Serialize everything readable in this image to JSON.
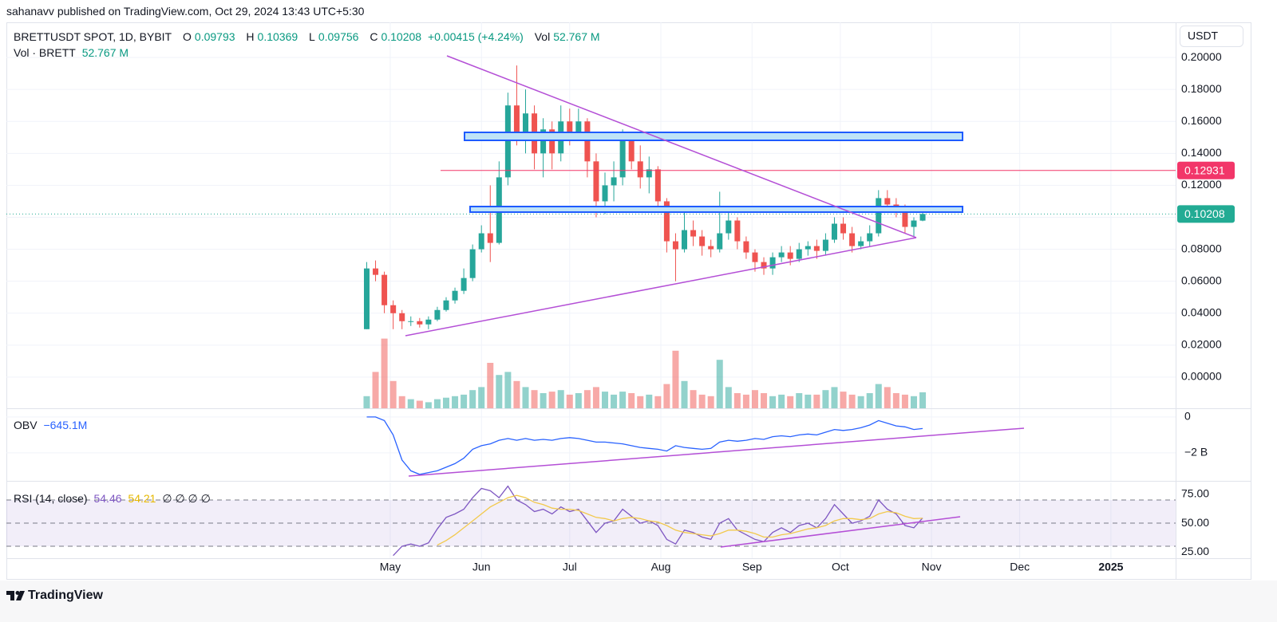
{
  "header": {
    "publisher": "sahanavv published on TradingView.com, Oct 29, 2024 13:43 UTC+5:30"
  },
  "footer": {
    "brand": "TradingView"
  },
  "chart_data": [
    {
      "type": "candlestick",
      "symbol": "BRETTUSDT SPOT, 1D, BYBIT",
      "ohlc_keys": [
        "O",
        "H",
        "L",
        "C"
      ],
      "change": "+0.00415 (+4.24%)",
      "volume_key": "Vol",
      "volume_text": "52.767 M",
      "volume_legend": "Vol · BRETT",
      "currency": "USDT",
      "x": [
        -8,
        -5,
        -2,
        1,
        4,
        7,
        10,
        13,
        16,
        19,
        22,
        25,
        28,
        31,
        34,
        37,
        40,
        43,
        46,
        49,
        52,
        55,
        58,
        61,
        64,
        67,
        70,
        73,
        76,
        79,
        82,
        85,
        88,
        91,
        94,
        97,
        100,
        103,
        106,
        109,
        112,
        115,
        118,
        121,
        124,
        127,
        130,
        133,
        136,
        139,
        142,
        145,
        148,
        151,
        154,
        157,
        160,
        163,
        166,
        169,
        172,
        175,
        178,
        181
      ],
      "xlim": [
        -130.5,
        267
      ],
      "xticks": [
        {
          "value": 0,
          "label": "May"
        },
        {
          "value": 31,
          "label": "Jun"
        },
        {
          "value": 61,
          "label": "Jul"
        },
        {
          "value": 92,
          "label": "Aug"
        },
        {
          "value": 123,
          "label": "Sep"
        },
        {
          "value": 153,
          "label": "Oct"
        },
        {
          "value": 184,
          "label": "Nov"
        },
        {
          "value": 214,
          "label": "Dec"
        },
        {
          "value": 245,
          "label": "2025"
        }
      ],
      "open": [
        0.03,
        0.068,
        0.064,
        0.045,
        0.04,
        0.035,
        0.035,
        0.033,
        0.036,
        0.042,
        0.048,
        0.054,
        0.062,
        0.08,
        0.09,
        0.084,
        0.125,
        0.17,
        0.15,
        0.165,
        0.14,
        0.155,
        0.14,
        0.16,
        0.15,
        0.16,
        0.135,
        0.11,
        0.12,
        0.125,
        0.15,
        0.135,
        0.125,
        0.13,
        0.11,
        0.085,
        0.08,
        0.092,
        0.088,
        0.082,
        0.08,
        0.09,
        0.098,
        0.085,
        0.078,
        0.072,
        0.068,
        0.075,
        0.078,
        0.074,
        0.08,
        0.082,
        0.079,
        0.086,
        0.096,
        0.09,
        0.082,
        0.085,
        0.09,
        0.112,
        0.108,
        0.106,
        0.094,
        0.09793
      ],
      "high": [
        0.072,
        0.073,
        0.066,
        0.048,
        0.042,
        0.038,
        0.037,
        0.038,
        0.044,
        0.05,
        0.056,
        0.068,
        0.083,
        0.095,
        0.12,
        0.135,
        0.178,
        0.195,
        0.18,
        0.17,
        0.162,
        0.16,
        0.17,
        0.168,
        0.168,
        0.162,
        0.14,
        0.128,
        0.135,
        0.155,
        0.152,
        0.145,
        0.138,
        0.132,
        0.112,
        0.09,
        0.105,
        0.098,
        0.092,
        0.086,
        0.116,
        0.104,
        0.1,
        0.088,
        0.08,
        0.075,
        0.078,
        0.082,
        0.082,
        0.084,
        0.085,
        0.086,
        0.09,
        0.1,
        0.1,
        0.094,
        0.088,
        0.095,
        0.117,
        0.117,
        0.112,
        0.108,
        0.1,
        0.10369
      ],
      "low": [
        0.03,
        0.06,
        0.04,
        0.03,
        0.03,
        0.032,
        0.031,
        0.03,
        0.035,
        0.041,
        0.046,
        0.052,
        0.06,
        0.078,
        0.072,
        0.083,
        0.12,
        0.145,
        0.14,
        0.13,
        0.125,
        0.13,
        0.135,
        0.145,
        0.148,
        0.125,
        0.1,
        0.102,
        0.11,
        0.12,
        0.13,
        0.118,
        0.115,
        0.105,
        0.078,
        0.06,
        0.078,
        0.082,
        0.076,
        0.075,
        0.078,
        0.086,
        0.08,
        0.074,
        0.066,
        0.064,
        0.064,
        0.072,
        0.07,
        0.072,
        0.076,
        0.074,
        0.076,
        0.084,
        0.086,
        0.078,
        0.08,
        0.082,
        0.088,
        0.104,
        0.1,
        0.09,
        0.088,
        0.09756
      ],
      "close": [
        0.068,
        0.064,
        0.045,
        0.04,
        0.035,
        0.035,
        0.033,
        0.036,
        0.042,
        0.048,
        0.054,
        0.062,
        0.08,
        0.09,
        0.084,
        0.125,
        0.17,
        0.15,
        0.165,
        0.14,
        0.155,
        0.14,
        0.16,
        0.15,
        0.16,
        0.135,
        0.11,
        0.12,
        0.125,
        0.15,
        0.135,
        0.125,
        0.13,
        0.11,
        0.085,
        0.08,
        0.092,
        0.088,
        0.082,
        0.08,
        0.09,
        0.098,
        0.085,
        0.078,
        0.072,
        0.068,
        0.075,
        0.078,
        0.074,
        0.08,
        0.082,
        0.079,
        0.086,
        0.096,
        0.09,
        0.082,
        0.085,
        0.09,
        0.112,
        0.108,
        0.106,
        0.094,
        0.098,
        0.10208
      ],
      "volume": [
        40,
        120,
        230,
        90,
        40,
        30,
        25,
        20,
        30,
        35,
        40,
        45,
        60,
        70,
        150,
        110,
        120,
        90,
        70,
        60,
        50,
        55,
        60,
        45,
        50,
        60,
        70,
        55,
        45,
        55,
        50,
        40,
        45,
        40,
        80,
        190,
        90,
        60,
        45,
        40,
        160,
        70,
        50,
        45,
        60,
        50,
        40,
        45,
        40,
        50,
        45,
        45,
        60,
        70,
        55,
        45,
        40,
        50,
        80,
        70,
        50,
        45,
        40,
        52.767
      ],
      "up_color": "#26a69a",
      "down_color": "#ef5350",
      "ylim": [
        -0.0195,
        0.222
      ],
      "yticks": [
        {
          "value": 0.2,
          "label": "0.20000"
        },
        {
          "value": 0.18,
          "label": "0.18000"
        },
        {
          "value": 0.16,
          "label": "0.16000"
        },
        {
          "value": 0.14,
          "label": "0.14000"
        },
        {
          "value": 0.12,
          "label": "0.12000"
        },
        {
          "value": 0.1,
          "label": "0.10000"
        },
        {
          "value": 0.08,
          "label": "0.08000"
        },
        {
          "value": 0.06,
          "label": "0.06000"
        },
        {
          "value": 0.04,
          "label": "0.04000"
        },
        {
          "value": 0.02,
          "label": "0.02000"
        },
        {
          "value": 0,
          "label": "0.00000"
        }
      ],
      "grid": true,
      "price_lines": [
        {
          "value": 0.12931,
          "color": "#f23669",
          "style": "solid"
        },
        {
          "value": 0.10208,
          "color": "#22ab94",
          "style": "dotted"
        }
      ]
    },
    {
      "type": "line",
      "title": "OBV",
      "value_text": "−645.1M",
      "series": [
        {
          "color": "#2962ff",
          "values": [
            0,
            0,
            -0.2,
            -1.0,
            -2.4,
            -3.0,
            -3.2,
            -3.1,
            -3.0,
            -2.8,
            -2.6,
            -2.3,
            -1.8,
            -1.6,
            -1.5,
            -1.3,
            -1.2,
            -1.3,
            -1.2,
            -1.3,
            -1.25,
            -1.3,
            -1.2,
            -1.15,
            -1.2,
            -1.3,
            -1.4,
            -1.4,
            -1.45,
            -1.5,
            -1.6,
            -1.7,
            -1.75,
            -1.8,
            -1.9,
            -1.6,
            -1.7,
            -1.75,
            -1.8,
            -1.75,
            -1.4,
            -1.3,
            -1.35,
            -1.3,
            -1.2,
            -1.25,
            -1.1,
            -1.05,
            -1.1,
            -1.0,
            -0.95,
            -1.0,
            -0.85,
            -0.7,
            -0.75,
            -0.7,
            -0.6,
            -0.45,
            -0.2,
            -0.35,
            -0.5,
            -0.55,
            -0.7,
            -0.6451
          ]
        }
      ],
      "ylim": [
        -3.56,
        0.44
      ],
      "yticks": [
        0,
        {
          "value": -2,
          "label": "−2 B"
        }
      ],
      "grid": true
    },
    {
      "type": "line",
      "title": "RSI (14, close)",
      "extra_text": "∅ ∅ ∅ ∅",
      "series": [
        {
          "color": "#7e57c2",
          "values": [
            null,
            null,
            null,
            22,
            30,
            32,
            30,
            33,
            45,
            55,
            58,
            62,
            72,
            80,
            78,
            72,
            82,
            70,
            66,
            60,
            62,
            58,
            64,
            60,
            62,
            52,
            42,
            50,
            52,
            62,
            56,
            50,
            52,
            48,
            36,
            32,
            44,
            42,
            38,
            36,
            50,
            54,
            44,
            40,
            36,
            34,
            42,
            46,
            42,
            48,
            50,
            46,
            54,
            66,
            58,
            50,
            52,
            56,
            70,
            62,
            58,
            48,
            46,
            54.46
          ]
        },
        {
          "color": "#f2c94c",
          "values": [
            null,
            null,
            null,
            null,
            null,
            null,
            null,
            null,
            31,
            35,
            40,
            46,
            52,
            58,
            64,
            68,
            72,
            74,
            72,
            68,
            66,
            63,
            62,
            62,
            61,
            58,
            55,
            54,
            52,
            54,
            55,
            54,
            52,
            51,
            48,
            44,
            42,
            41,
            40,
            39,
            41,
            44,
            44,
            43,
            41,
            38,
            38,
            40,
            41,
            43,
            45,
            46,
            48,
            52,
            54,
            54,
            53,
            54,
            58,
            60,
            59,
            56,
            54,
            54.21
          ]
        }
      ],
      "band_levels": [
        70,
        50,
        30
      ],
      "band_color": "#7e57c2",
      "ylim": [
        19.7,
        85.2
      ],
      "yticks": [
        {
          "value": 75,
          "label": "75.00"
        },
        {
          "value": 50,
          "label": "50.00"
        },
        {
          "value": 25,
          "label": "25.00"
        }
      ],
      "grid": false
    }
  ]
}
